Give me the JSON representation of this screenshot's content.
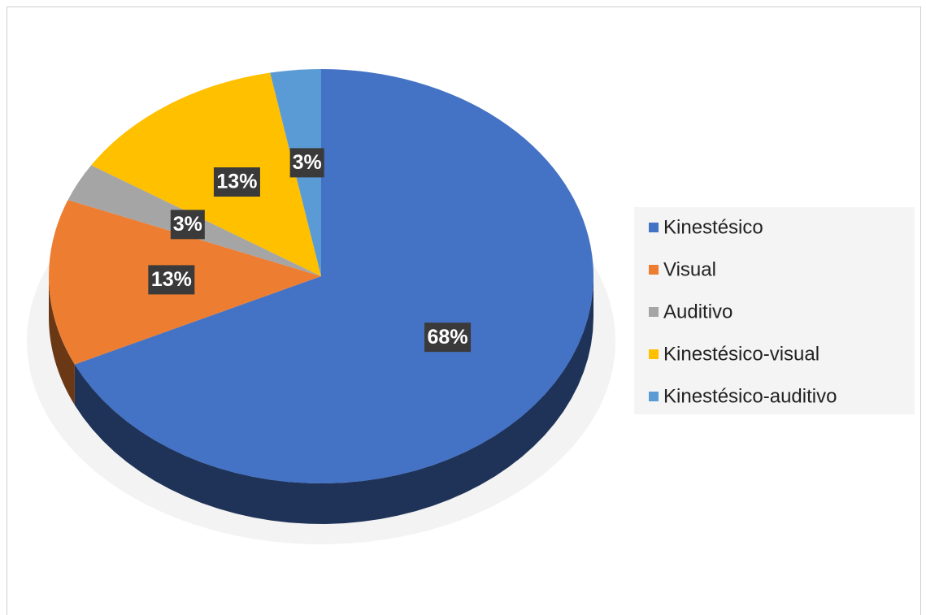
{
  "chart_data": {
    "type": "pie",
    "categories": [
      "Kinestésico",
      "Visual",
      "Auditivo",
      "Kinestésico-visual",
      "Kinestésico-auditivo"
    ],
    "values": [
      68,
      13,
      3,
      13,
      3
    ],
    "value_labels": [
      "68%",
      "13%",
      "3%",
      "13%",
      "3%"
    ],
    "colors": [
      "#4472c4",
      "#ed7d31",
      "#a5a5a5",
      "#ffc000",
      "#5b9bd5"
    ],
    "legend": "right"
  }
}
